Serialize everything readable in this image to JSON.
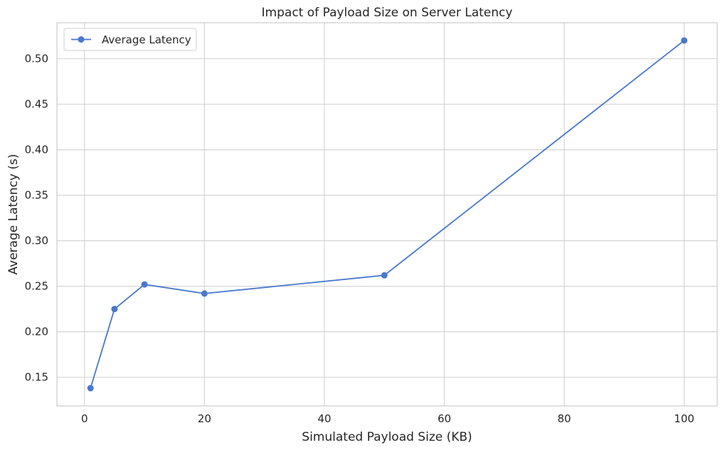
{
  "chart_data": {
    "type": "line",
    "title": "Impact of Payload Size on Server Latency",
    "xlabel": "Simulated Payload Size (KB)",
    "ylabel": "Average Latency (s)",
    "xlim": [
      -4.6,
      105.5
    ],
    "ylim": [
      0.1185,
      0.5395
    ],
    "xticks": [
      0,
      20,
      40,
      60,
      80,
      100
    ],
    "xtick_labels": [
      "0",
      "20",
      "40",
      "60",
      "80",
      "100"
    ],
    "yticks": [
      0.15,
      0.2,
      0.25,
      0.3,
      0.35,
      0.4,
      0.45,
      0.5
    ],
    "ytick_labels": [
      "0.15",
      "0.20",
      "0.25",
      "0.30",
      "0.35",
      "0.40",
      "0.45",
      "0.50"
    ],
    "grid": true,
    "legend_position": "top-left",
    "series": [
      {
        "name": "Average Latency",
        "color": "#4878cf",
        "marker": "circle",
        "x": [
          1,
          5,
          10,
          20,
          50,
          100
        ],
        "y": [
          0.138,
          0.225,
          0.252,
          0.242,
          0.262,
          0.52
        ]
      }
    ]
  },
  "colors": {
    "grid": "#d5d5d5",
    "axis": "#cccccc",
    "text": "#262626",
    "background": "#ffffff"
  }
}
